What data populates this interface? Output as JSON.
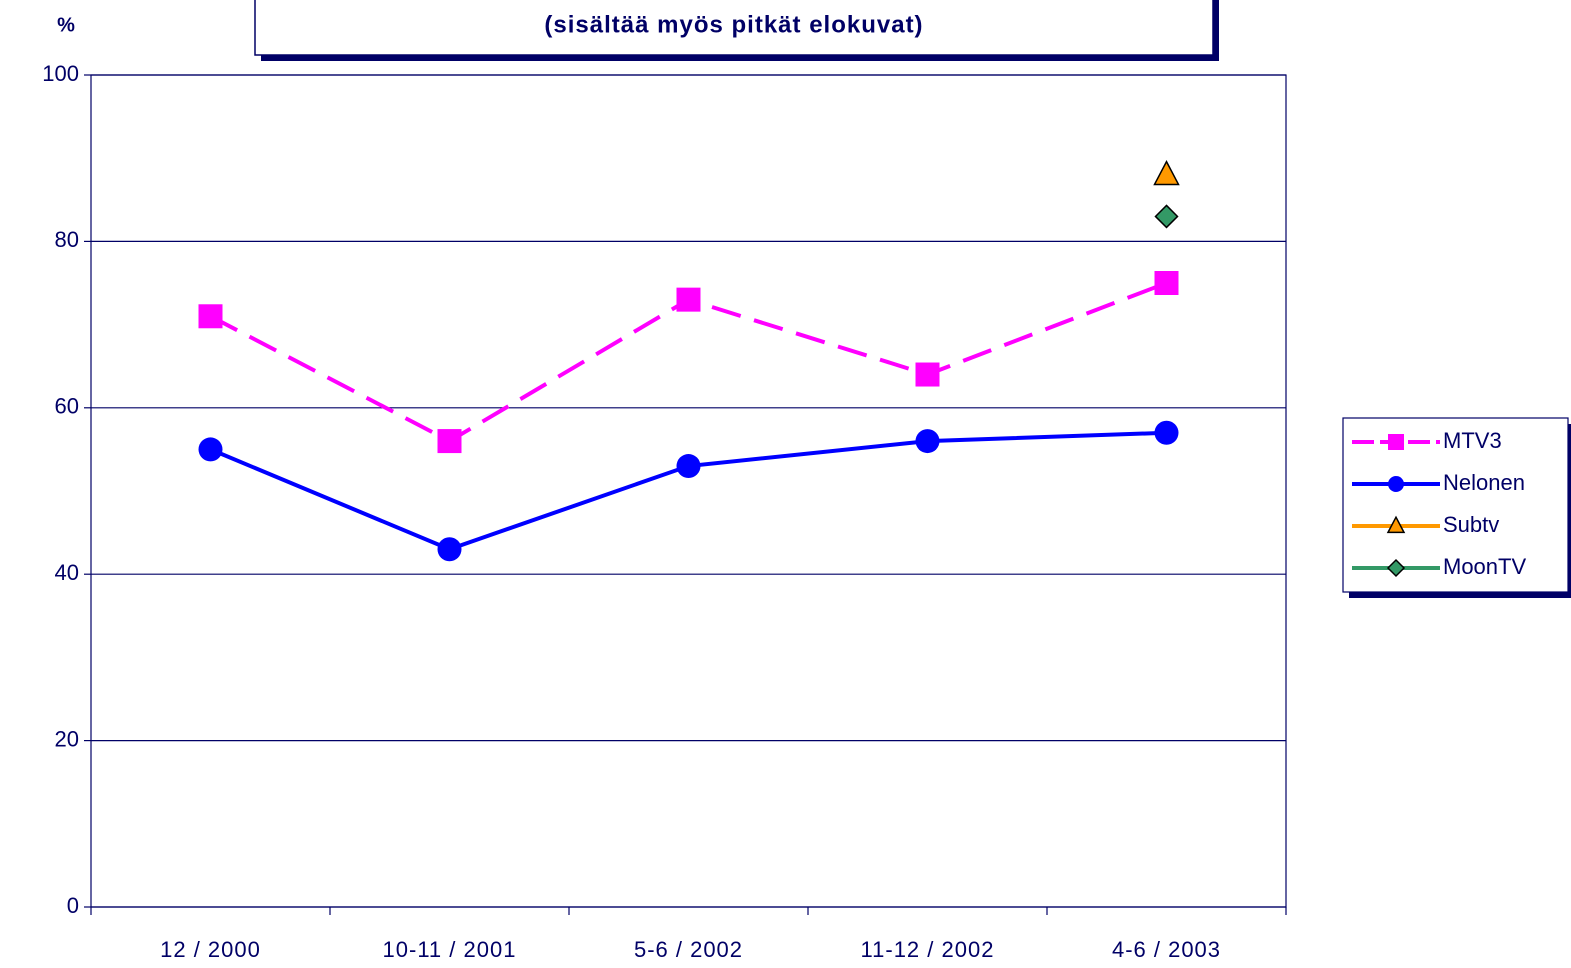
{
  "chart_data": {
    "type": "line",
    "title": "(sisältää myös pitkät elokuvat)",
    "y_label": "%",
    "categories": [
      "12 / 2000",
      "10-11 / 2001",
      "5-6 / 2002",
      "11-12 / 2002",
      "4-6 / 2003"
    ],
    "series": [
      {
        "name": "MTV3",
        "color": "#ff00ff",
        "marker": "square",
        "dashed": true,
        "values": [
          71,
          56,
          73,
          64,
          75
        ]
      },
      {
        "name": "Nelonen",
        "color": "#0000ff",
        "marker": "circle",
        "dashed": false,
        "values": [
          55,
          43,
          53,
          56,
          57
        ]
      },
      {
        "name": "Subtv",
        "color": "#ff9900",
        "marker": "triangle",
        "dashed": false,
        "values": [
          null,
          null,
          null,
          null,
          88
        ]
      },
      {
        "name": "MoonTV",
        "color": "#339966",
        "marker": "diamond",
        "dashed": false,
        "values": [
          null,
          null,
          null,
          null,
          83
        ]
      }
    ],
    "ylim": [
      0,
      100
    ],
    "yticks": [
      0,
      20,
      40,
      60,
      80,
      100
    ],
    "grid": true,
    "legend": "right"
  }
}
